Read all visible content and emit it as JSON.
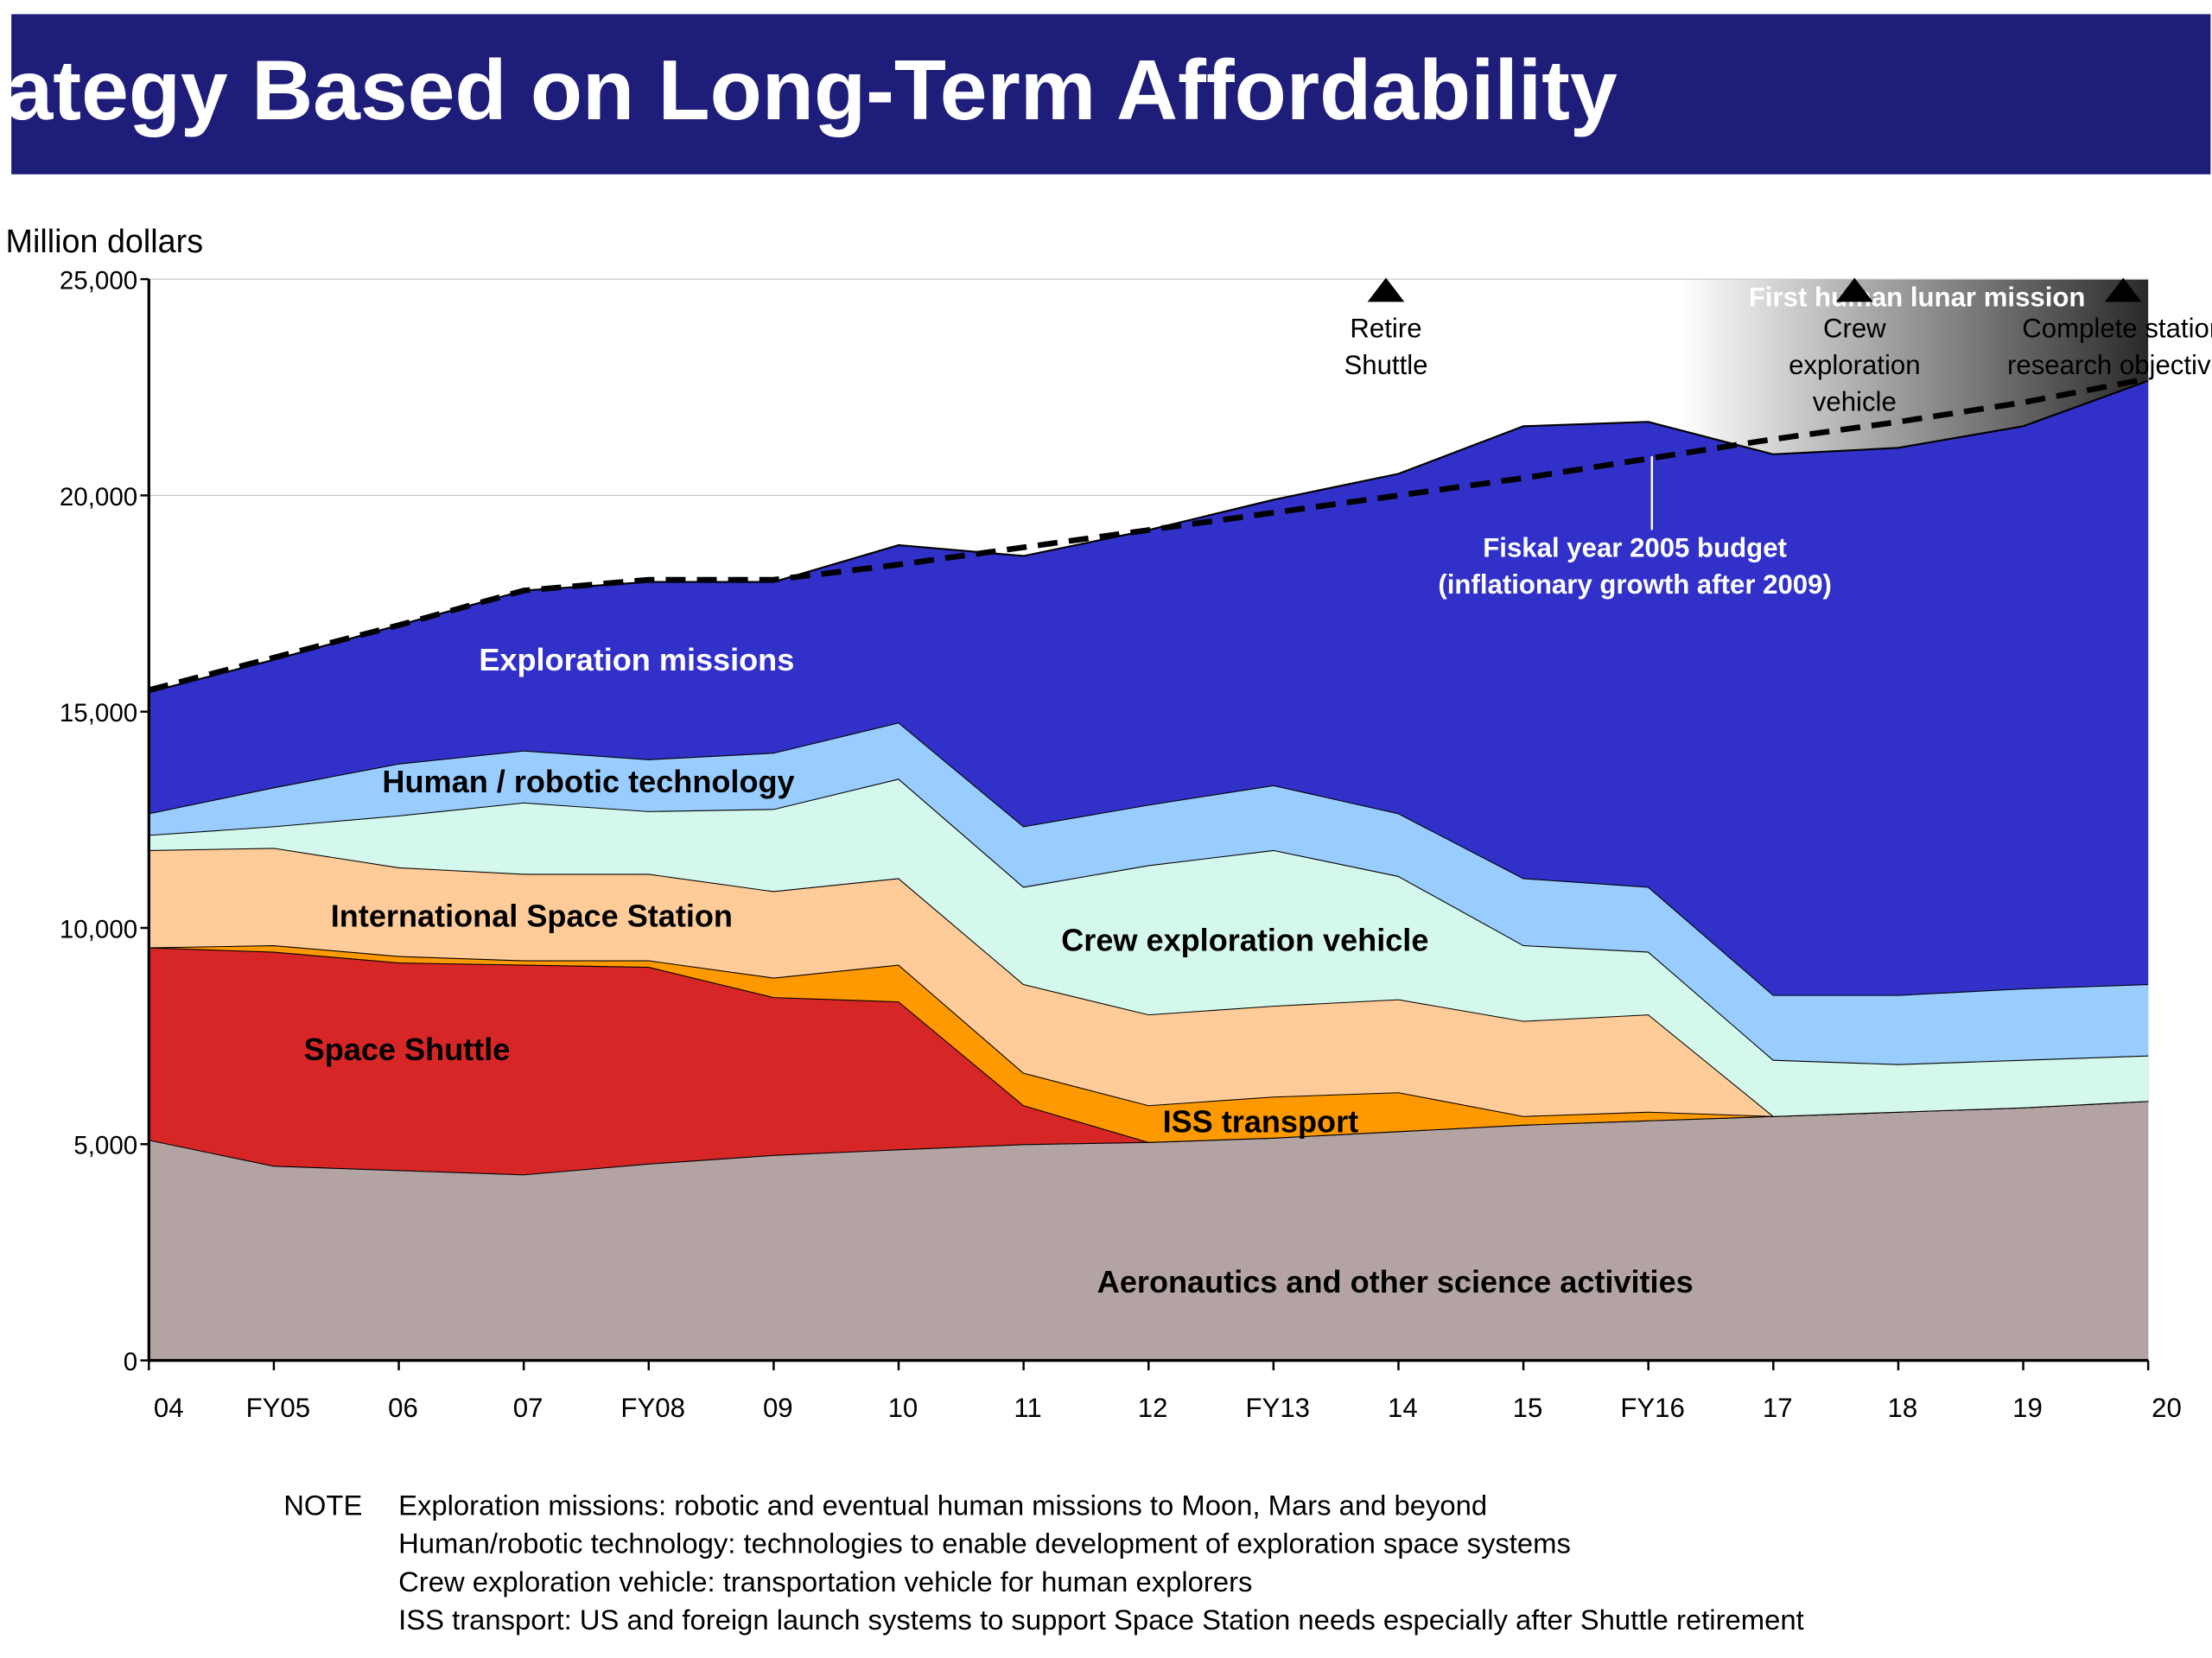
{
  "header": {
    "title": "ategy Based on Long-Term Affordability"
  },
  "colors": {
    "header_bg": "#1e1e7a",
    "exploration": "#3131c9",
    "technology": "#99ccff",
    "cev": "#d4f8ec",
    "iss": "#ffcc99",
    "iss_transport": "#ff9900",
    "shuttle": "#d62626",
    "aeronautics": "#b3a3a3"
  },
  "chart_data": {
    "type": "area",
    "stacked": true,
    "ylabel": "Million dollars",
    "ylim": [
      0,
      25000
    ],
    "yticks": [
      0,
      5000,
      10000,
      15000,
      20000,
      25000
    ],
    "ytick_labels": [
      "0",
      "5,000",
      "10,000",
      "15,000",
      "20,000",
      "25,000"
    ],
    "categories": [
      "04",
      "FY05",
      "06",
      "07",
      "FY08",
      "09",
      "10",
      "11",
      "12",
      "FY13",
      "14",
      "15",
      "FY16",
      "17",
      "18",
      "19",
      "20"
    ],
    "grid": true,
    "series": [
      {
        "key": "aeronautics",
        "name": "Aeronautics and other science activities",
        "values": [
          5100,
          4500,
          4400,
          4300,
          4550,
          4750,
          4880,
          5000,
          5050,
          5150,
          5300,
          5450,
          5550,
          5650,
          5750,
          5850,
          6000
        ]
      },
      {
        "key": "shuttle",
        "name": "Space Shuttle",
        "values": [
          4450,
          4950,
          4800,
          4850,
          4550,
          3650,
          3420,
          900,
          0,
          0,
          0,
          0,
          0,
          0,
          0,
          0,
          0
        ]
      },
      {
        "key": "iss_transport",
        "name": "ISS transport",
        "values": [
          0,
          150,
          150,
          100,
          150,
          450,
          850,
          750,
          850,
          950,
          900,
          200,
          200,
          0,
          0,
          0,
          0
        ]
      },
      {
        "key": "iss",
        "name": "International Space Station",
        "values": [
          2250,
          2250,
          2050,
          2000,
          2000,
          2000,
          2000,
          2050,
          2100,
          2100,
          2150,
          2200,
          2250,
          0,
          0,
          0,
          0
        ]
      },
      {
        "key": "cev",
        "name": "Crew exploration vehicle",
        "values": [
          350,
          500,
          1200,
          1650,
          1450,
          1900,
          2300,
          2250,
          3450,
          3600,
          2850,
          1750,
          1450,
          1300,
          1100,
          1100,
          1050
        ]
      },
      {
        "key": "technology",
        "name": "Human / robotic technology",
        "values": [
          500,
          900,
          1200,
          1200,
          1200,
          1300,
          1300,
          1400,
          1400,
          1500,
          1450,
          1550,
          1500,
          1500,
          1600,
          1650,
          1650
        ]
      },
      {
        "key": "exploration",
        "name": "Exploration missions",
        "values": [
          2800,
          2950,
          3200,
          3700,
          4100,
          3950,
          4100,
          6250,
          6350,
          6600,
          7850,
          10450,
          10750,
          12500,
          12650,
          13000,
          13950
        ]
      }
    ],
    "budget_line": {
      "name": "Fiskal year 2005 budget",
      "label_line1": "Fiskal year 2005 budget",
      "label_line2": "(inflationary growth after 2009)",
      "values": [
        15500,
        16250,
        17000,
        17800,
        18050,
        18050,
        18400,
        18800,
        19200,
        19600,
        20000,
        20400,
        20850,
        21300,
        21700,
        22150,
        22700
      ]
    },
    "milestones": [
      {
        "at": 9.9,
        "lines": [
          "Retire",
          "Shuttle"
        ]
      },
      {
        "at": 13.65,
        "lines": [
          "Crew",
          "exploration",
          "vehicle"
        ]
      },
      {
        "at": 15.8,
        "lines": [
          "Complete station",
          "research objectives"
        ]
      }
    ],
    "lunar_label": "First human lunar mission"
  },
  "notes": {
    "prefix": "NOTE",
    "lines": [
      "Exploration missions: robotic and eventual human missions to Moon, Mars and beyond",
      "Human/robotic technology: technologies to enable development of exploration space systems",
      "Crew exploration vehicle: transportation vehicle for human explorers",
      "ISS transport: US and foreign launch systems to support Space Station needs especially after Shuttle retirement"
    ]
  }
}
